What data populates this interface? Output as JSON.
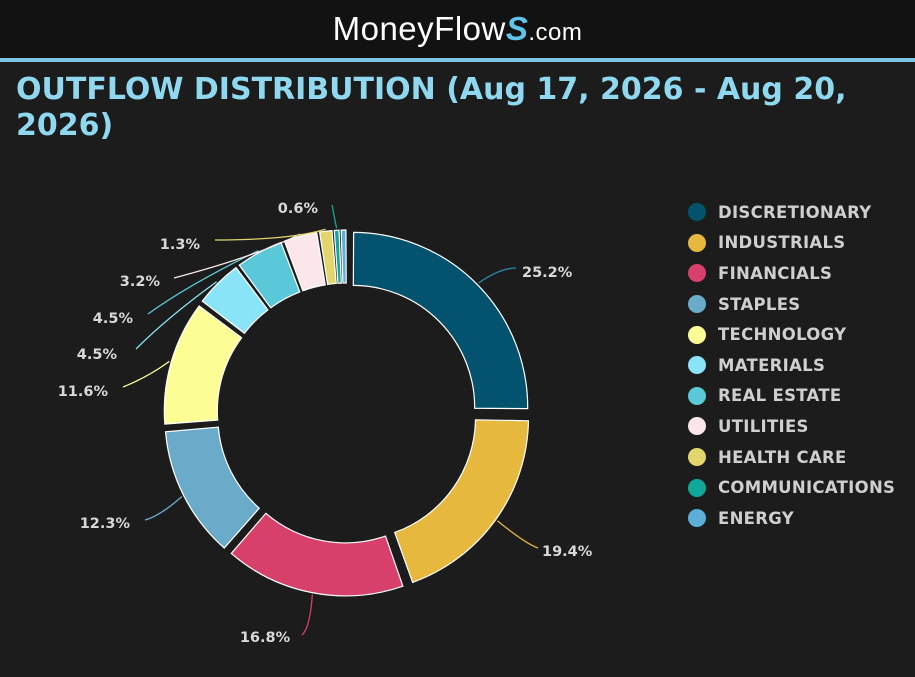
{
  "header": {
    "logo_main": "MoneyFlow",
    "logo_s": "S",
    "logo_suffix": ".com"
  },
  "title": "OUTFLOW DISTRIBUTION (Aug 17, 2026 - Aug 20, 2026)",
  "chart_data": {
    "type": "pie",
    "variant": "donut",
    "title": "OUTFLOW DISTRIBUTION (Aug 17, 2026 - Aug 20, 2026)",
    "legend_placement": "right",
    "unit": "%",
    "slices": [
      {
        "name": "DISCRETIONARY",
        "value": 25.2,
        "label": "25.2%",
        "color": "#04536e"
      },
      {
        "name": "INDUSTRIALS",
        "value": 19.4,
        "label": "19.4%",
        "color": "#e6b83e"
      },
      {
        "name": "FINANCIALS",
        "value": 16.8,
        "label": "16.8%",
        "color": "#d6406a"
      },
      {
        "name": "STAPLES",
        "value": 12.3,
        "label": "12.3%",
        "color": "#6aabc9"
      },
      {
        "name": "TECHNOLOGY",
        "value": 11.6,
        "label": "11.6%",
        "color": "#fdfd96"
      },
      {
        "name": "MATERIALS",
        "value": 4.5,
        "label": "4.5%",
        "color": "#8ae4f8"
      },
      {
        "name": "REAL ESTATE",
        "value": 4.5,
        "label": "4.5%",
        "color": "#5ac8d8"
      },
      {
        "name": "UTILITIES",
        "value": 3.2,
        "label": "3.2%",
        "color": "#fbe6ea"
      },
      {
        "name": "HEALTH CARE",
        "value": 1.3,
        "label": "1.3%",
        "color": "#e2d56c"
      },
      {
        "name": "COMMUNICATIONS",
        "value": 0.6,
        "label": "0.6%",
        "color": "#0fa89a"
      },
      {
        "name": "ENERGY",
        "value": 0.6,
        "label": "",
        "color": "#5aaed8"
      }
    ]
  }
}
